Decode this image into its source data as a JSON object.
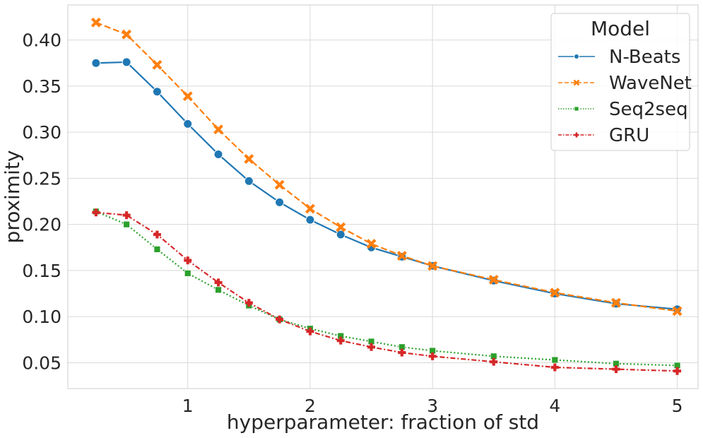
{
  "chart_data": {
    "type": "line",
    "xlabel": "hyperparameter: fraction of std",
    "ylabel": "proximity",
    "xlim": [
      0.02,
      5.17
    ],
    "ylim": [
      0.022,
      0.438
    ],
    "xticks": [
      1,
      2,
      3,
      4,
      5
    ],
    "xtick_labels": [
      "1",
      "2",
      "3",
      "4",
      "5"
    ],
    "yticks": [
      0.05,
      0.1,
      0.15,
      0.2,
      0.25,
      0.3,
      0.35,
      0.4
    ],
    "ytick_labels": [
      "0.05",
      "0.10",
      "0.15",
      "0.20",
      "0.25",
      "0.30",
      "0.35",
      "0.40"
    ],
    "grid": true,
    "legend": {
      "title": "Model",
      "placement": "top-right"
    },
    "series": [
      {
        "name": "N-Beats",
        "color": "#1f77b4",
        "dash": "solid",
        "marker": "circle",
        "x": [
          0.25,
          0.5,
          0.75,
          1.0,
          1.25,
          1.5,
          1.75,
          2.0,
          2.25,
          2.5,
          2.75,
          3.0,
          3.5,
          4.0,
          4.5,
          5.0
        ],
        "values": [
          0.375,
          0.376,
          0.344,
          0.309,
          0.276,
          0.247,
          0.224,
          0.205,
          0.189,
          0.175,
          0.165,
          0.155,
          0.139,
          0.125,
          0.114,
          0.108
        ]
      },
      {
        "name": "WaveNet",
        "color": "#ff7f0e",
        "dash": "dashed",
        "marker": "x",
        "x": [
          0.25,
          0.5,
          0.75,
          1.0,
          1.25,
          1.5,
          1.75,
          2.0,
          2.25,
          2.5,
          2.75,
          3.0,
          3.5,
          4.0,
          4.5,
          5.0
        ],
        "values": [
          0.419,
          0.406,
          0.373,
          0.339,
          0.303,
          0.271,
          0.243,
          0.217,
          0.197,
          0.179,
          0.166,
          0.155,
          0.14,
          0.126,
          0.115,
          0.106
        ]
      },
      {
        "name": "Seq2seq",
        "color": "#2ca02c",
        "dash": "dotted",
        "marker": "square",
        "x": [
          0.25,
          0.5,
          0.75,
          1.0,
          1.25,
          1.5,
          1.75,
          2.0,
          2.25,
          2.5,
          2.75,
          3.0,
          3.5,
          4.0,
          4.5,
          5.0
        ],
        "values": [
          0.214,
          0.2,
          0.173,
          0.147,
          0.129,
          0.112,
          0.097,
          0.087,
          0.079,
          0.073,
          0.067,
          0.063,
          0.057,
          0.053,
          0.049,
          0.047
        ]
      },
      {
        "name": "GRU",
        "color": "#d62728",
        "dash": "dashdot",
        "marker": "plus",
        "x": [
          0.25,
          0.5,
          0.75,
          1.0,
          1.25,
          1.5,
          1.75,
          2.0,
          2.25,
          2.5,
          2.75,
          3.0,
          3.5,
          4.0,
          4.5,
          5.0
        ],
        "values": [
          0.213,
          0.21,
          0.189,
          0.161,
          0.137,
          0.115,
          0.097,
          0.084,
          0.074,
          0.067,
          0.061,
          0.057,
          0.051,
          0.045,
          0.043,
          0.041
        ]
      }
    ]
  }
}
